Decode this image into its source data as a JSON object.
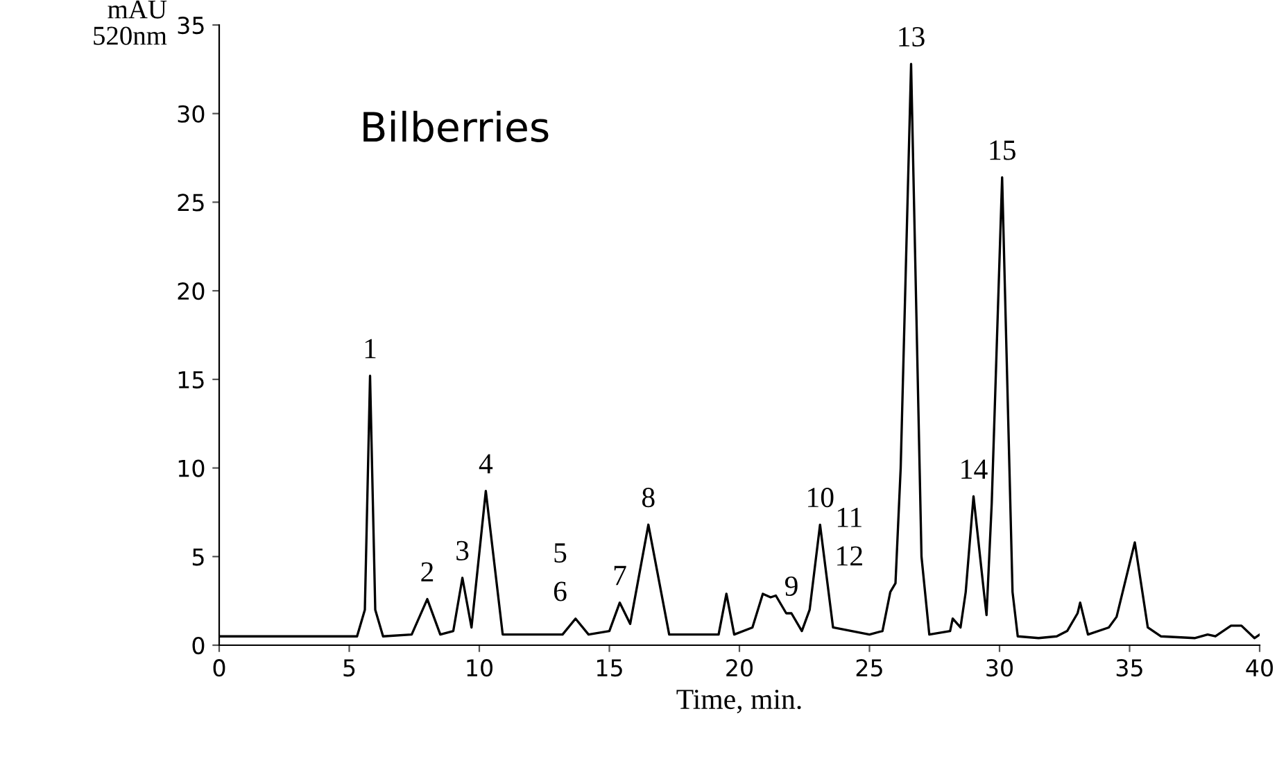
{
  "chart_data": {
    "type": "line",
    "xlabel": "Time, min.",
    "ylabel": "mAU\n520nm",
    "color": "#000000",
    "x": [
      0,
      5.3,
      5.6,
      5.8,
      6.0,
      6.3,
      7.4,
      8.0,
      8.5,
      9.0,
      9.35,
      9.7,
      10.25,
      10.9,
      13.2,
      13.7,
      14.2,
      15.0,
      15.4,
      15.8,
      16.5,
      17.3,
      19.2,
      19.5,
      19.8,
      20.5,
      20.9,
      21.2,
      21.4,
      21.8,
      22.0,
      22.4,
      22.7,
      23.1,
      23.6,
      25.0,
      25.5,
      25.8,
      26.0,
      26.2,
      26.6,
      27.0,
      27.3,
      28.1,
      28.2,
      28.5,
      28.7,
      29.0,
      29.4,
      29.5,
      29.7,
      30.1,
      30.5,
      30.7,
      31.5,
      32.2,
      32.6,
      33.0,
      33.1,
      33.4,
      34.2,
      34.5,
      35.2,
      35.7,
      36.2,
      37.5,
      38.0,
      38.3,
      38.9,
      39.3,
      39.8,
      40
    ],
    "values": [
      0.5,
      0.5,
      2,
      15.2,
      2,
      0.5,
      0.6,
      2.6,
      0.6,
      0.8,
      3.8,
      1.0,
      8.7,
      0.6,
      0.6,
      1.5,
      0.6,
      0.8,
      2.4,
      1.2,
      6.8,
      0.6,
      0.6,
      2.9,
      0.6,
      1.0,
      2.9,
      2.7,
      2.8,
      1.8,
      1.8,
      0.8,
      2.0,
      6.8,
      1.0,
      0.6,
      0.8,
      3.0,
      3.5,
      10,
      32.8,
      5,
      0.6,
      0.8,
      1.5,
      1.0,
      3,
      8.4,
      3,
      1.7,
      8,
      26.4,
      3,
      0.5,
      0.4,
      0.5,
      0.8,
      1.8,
      2.4,
      0.6,
      1.0,
      1.6,
      5.8,
      1.0,
      0.5,
      0.4,
      0.6,
      0.5,
      1.1,
      1.1,
      0.4,
      0.6
    ],
    "xlim": [
      0,
      40
    ],
    "xticks": [
      0,
      5,
      10,
      15,
      20,
      25,
      30,
      35,
      40
    ],
    "ylim": [
      0,
      35
    ],
    "yticks": [
      0,
      5,
      10,
      15,
      20,
      25,
      30,
      35
    ],
    "grid": false,
    "legend": false,
    "marker": "none",
    "line_style": "solid",
    "annotations": [
      "Bilberries",
      {
        "text": "1",
        "x": 5.8,
        "y": 15.2
      },
      {
        "text": "2",
        "x": 8.0,
        "y": 2.6
      },
      {
        "text": "3",
        "x": 9.35,
        "y": 3.8
      },
      {
        "text": "4",
        "x": 10.25,
        "y": 8.7
      },
      {
        "text": "5",
        "x": 13.7,
        "y": 1.5
      },
      {
        "text": "6",
        "x": 13.7,
        "y": 1.5
      },
      {
        "text": "7",
        "x": 15.4,
        "y": 2.4
      },
      {
        "text": "8",
        "x": 16.5,
        "y": 6.8
      },
      {
        "text": "9",
        "x": 22.0,
        "y": 1.8
      },
      {
        "text": "10",
        "x": 23.1,
        "y": 6.8
      },
      {
        "text": "11",
        "x": 26.0,
        "y": 3.5
      },
      {
        "text": "12",
        "x": 26.0,
        "y": 3.5
      },
      {
        "text": "13",
        "x": 26.6,
        "y": 32.8
      },
      {
        "text": "14",
        "x": 29.0,
        "y": 8.4
      },
      {
        "text": "15",
        "x": 30.1,
        "y": 26.4
      }
    ]
  }
}
